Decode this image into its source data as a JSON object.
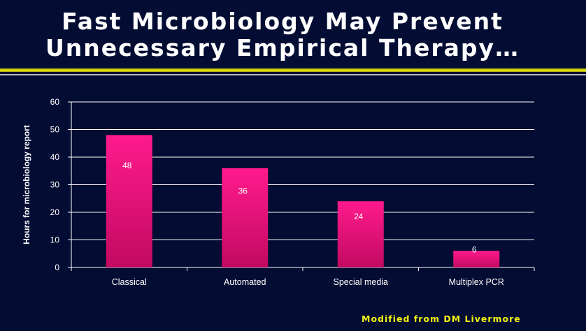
{
  "slide": {
    "title_line1": "Fast Microbiology May Prevent",
    "title_line2": "Unnecessary Empirical Therapy…",
    "footer": "Modified from DM Livermore"
  },
  "colors": {
    "background": "#030c33",
    "bar_top": "#ff1a8c",
    "bar_bottom": "#c20a62",
    "accent_rule": "#f2f200",
    "text": "#ffffff",
    "footer_text": "#f5f510"
  },
  "chart_data": {
    "type": "bar",
    "title": "",
    "xlabel": "",
    "ylabel": "Hours for microbiology report",
    "ylim": [
      0,
      60
    ],
    "yticks": [
      0,
      10,
      20,
      30,
      40,
      50,
      60
    ],
    "grid": true,
    "categories": [
      "Classical",
      "Automated",
      "Special media",
      "Multiplex PCR"
    ],
    "values": [
      48,
      36,
      24,
      6
    ],
    "data_labels": [
      "48",
      "36",
      "24",
      "6"
    ]
  }
}
